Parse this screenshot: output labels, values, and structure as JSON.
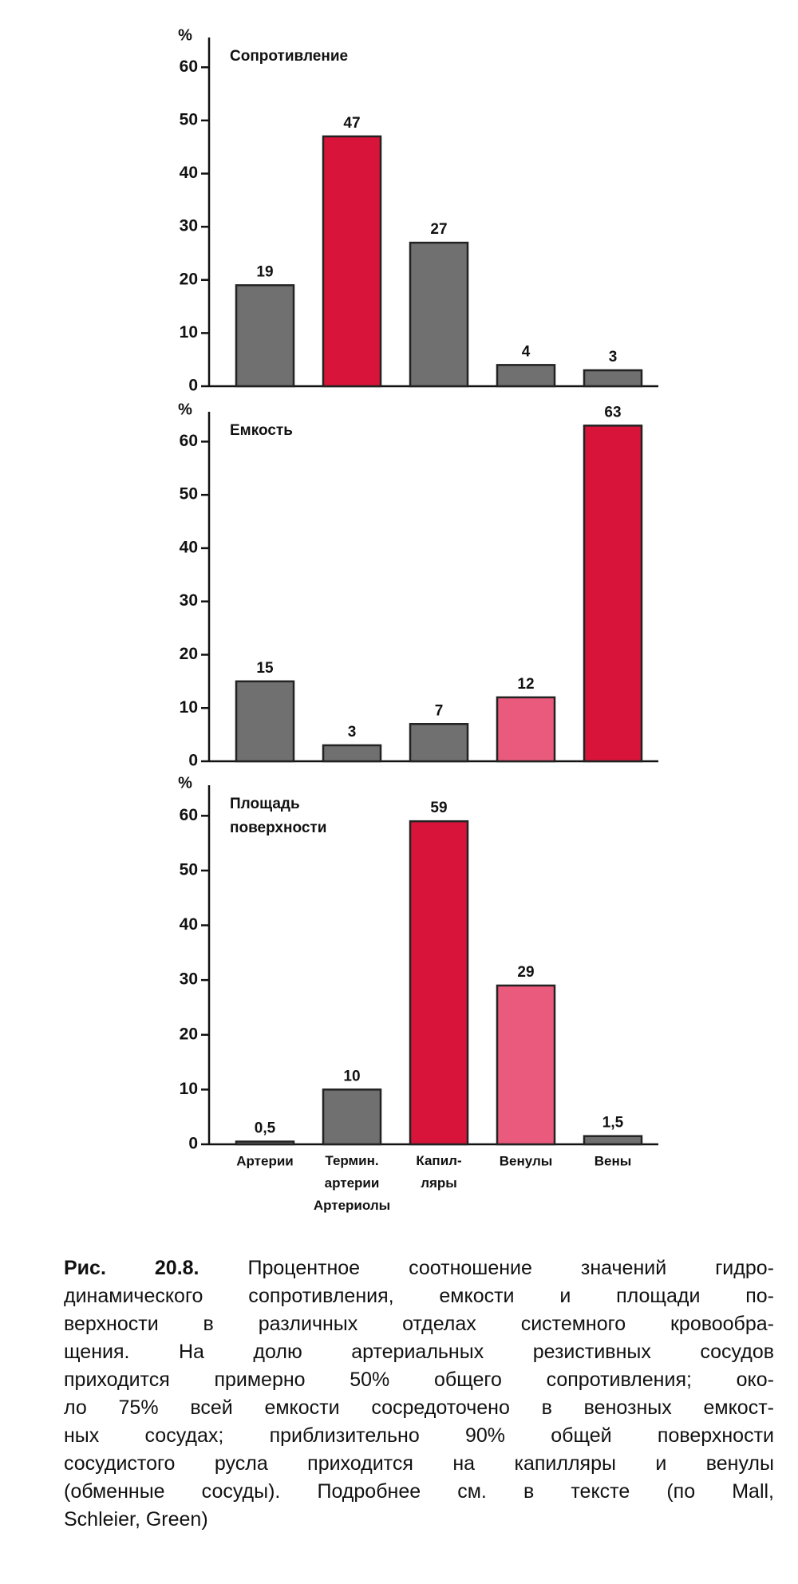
{
  "chart_data": [
    {
      "type": "bar",
      "title": "Сопротивление",
      "y_label": "%",
      "categories": [
        null,
        null,
        null,
        null,
        null
      ],
      "values": [
        19,
        47,
        27,
        4,
        3
      ],
      "colors": [
        "#707070",
        "#d8143a",
        "#707070",
        "#707070",
        "#707070"
      ],
      "ylim": [
        0,
        65
      ],
      "yticks": [
        0,
        10,
        20,
        30,
        40,
        50,
        60
      ]
    },
    {
      "type": "bar",
      "title": "Емкость",
      "y_label": "%",
      "categories": [
        null,
        null,
        null,
        null,
        null
      ],
      "values": [
        15,
        3,
        7,
        12,
        63
      ],
      "colors": [
        "#707070",
        "#707070",
        "#707070",
        "#ea5a7c",
        "#d8143a"
      ],
      "ylim": [
        0,
        65
      ],
      "yticks": [
        0,
        10,
        20,
        30,
        40,
        50,
        60
      ]
    },
    {
      "type": "bar",
      "title": "Площадь\nповерхности",
      "y_label": "%",
      "categories": [
        "Артерии",
        "Термин.\nартерии\nАртериолы",
        "Капил-\nляры",
        "Венулы",
        "Вены"
      ],
      "values": [
        0.5,
        10,
        59,
        29,
        1.5
      ],
      "value_labels": [
        "0,5",
        "10",
        "59",
        "29",
        "1,5"
      ],
      "colors": [
        "#707070",
        "#707070",
        "#d8143a",
        "#ea5a7c",
        "#707070"
      ],
      "ylim": [
        0,
        65
      ],
      "yticks": [
        0,
        10,
        20,
        30,
        40,
        50,
        60
      ]
    }
  ],
  "caption": {
    "label": "Рис. 20.8.",
    "lines": [
      "Процентное соотношение значений гидро-",
      "динамического сопротивления, емкости и площади по-",
      "верхности в различных отделах системного кровообра-",
      "щения. На долю артериальных резистивных сосудов",
      "приходится примерно 50% общего сопротивления; око-",
      "ло 75% всей емкости сосредоточено в венозных емкост-",
      "ных сосудах; приблизительно 90% общей поверхности",
      "сосудистого русла приходится на капилляры и венулы",
      "(обменные сосуды). Подробнее см. в тексте (по Mall,",
      "Schleier, Green)"
    ]
  }
}
